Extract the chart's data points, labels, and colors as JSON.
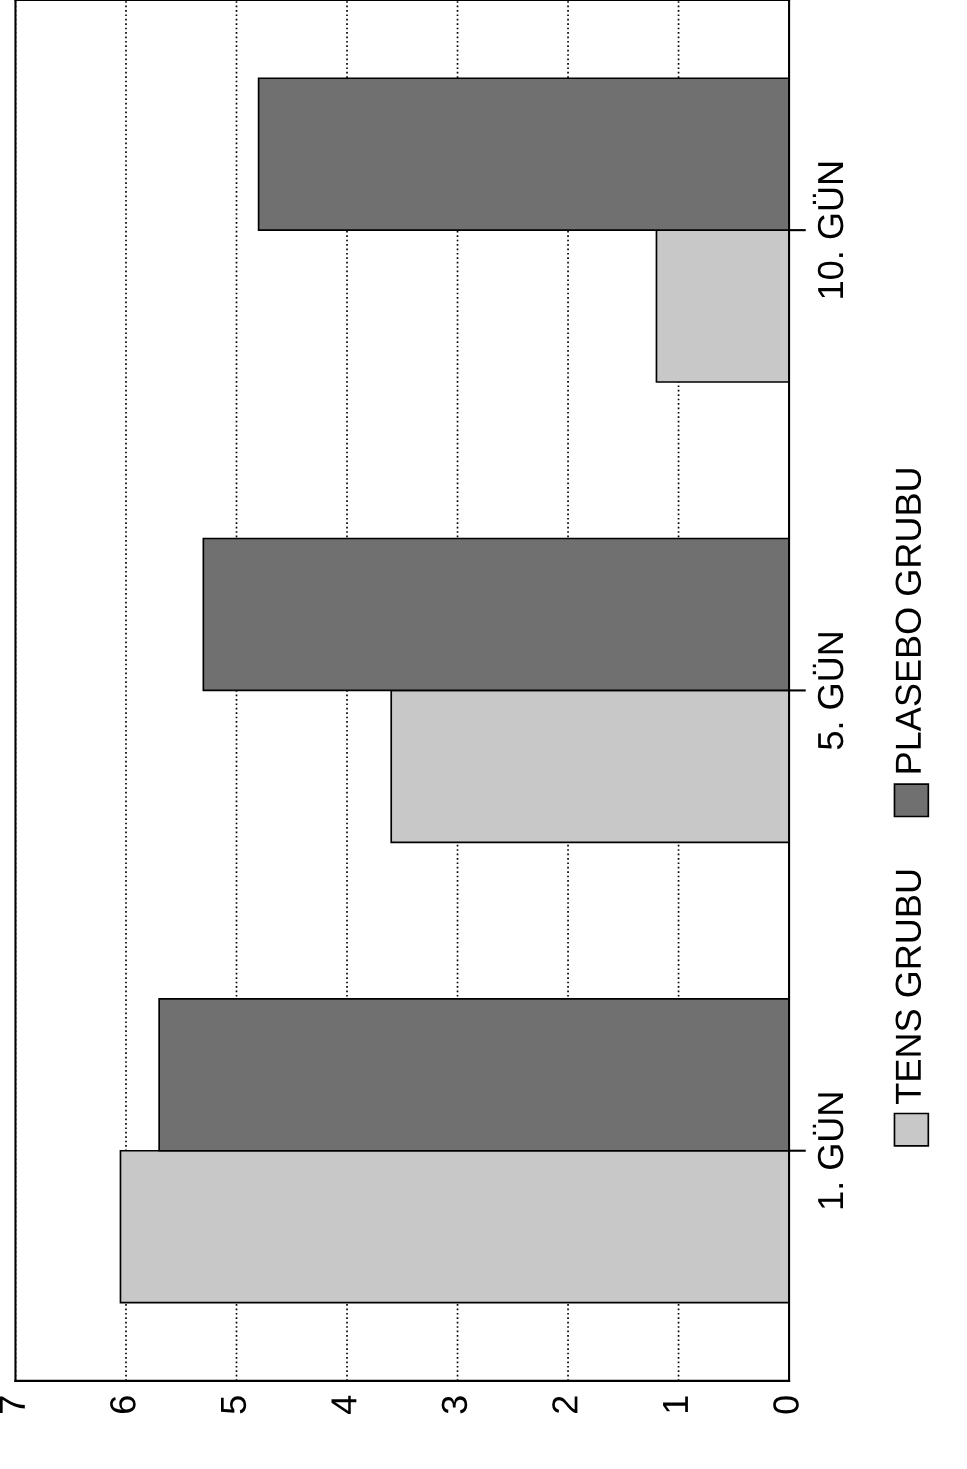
{
  "chart_data": {
    "type": "bar",
    "orientation": "horizontal",
    "categories": [
      "10. GÜN",
      "5. GÜN",
      "1. GÜN"
    ],
    "series": [
      {
        "name": "TENS GRUBU",
        "color": "#c8c8c8",
        "values": [
          1.2,
          3.6,
          6.05
        ]
      },
      {
        "name": "PLASEBO GRUBU",
        "color": "#707070",
        "values": [
          4.8,
          5.3,
          5.7
        ]
      }
    ],
    "xlim": [
      7,
      0
    ],
    "xticks": [
      7,
      6,
      5,
      4,
      3,
      2,
      1,
      0
    ],
    "grid": "x",
    "legend": "right"
  }
}
